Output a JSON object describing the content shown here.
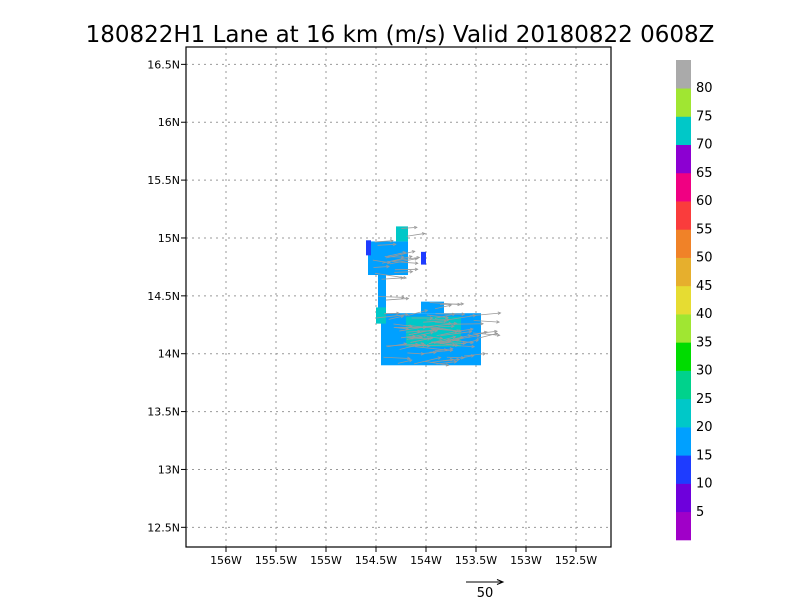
{
  "chart_data": {
    "type": "heatmap",
    "title": "180822H1 Lane at 16 km (m/s) Valid 20180822 0608Z",
    "xlim": [
      -156.4,
      -152.15
    ],
    "ylim": [
      12.33,
      16.65
    ],
    "xticks": [
      {
        "value": -156.0,
        "label": "156W"
      },
      {
        "value": -155.5,
        "label": "155.5W"
      },
      {
        "value": -155.0,
        "label": "155W"
      },
      {
        "value": -154.5,
        "label": "154.5W"
      },
      {
        "value": -154.0,
        "label": "154W"
      },
      {
        "value": -153.5,
        "label": "153.5W"
      },
      {
        "value": -153.0,
        "label": "153W"
      },
      {
        "value": -152.5,
        "label": "152.5W"
      }
    ],
    "yticks": [
      {
        "value": 12.5,
        "label": "12.5N"
      },
      {
        "value": 13.0,
        "label": "13N"
      },
      {
        "value": 13.5,
        "label": "13.5N"
      },
      {
        "value": 14.0,
        "label": "14N"
      },
      {
        "value": 14.5,
        "label": "14.5N"
      },
      {
        "value": 15.0,
        "label": "15N"
      },
      {
        "value": 15.5,
        "label": "15.5N"
      },
      {
        "value": 16.0,
        "label": "16N"
      },
      {
        "value": 16.5,
        "label": "16.5N"
      }
    ],
    "grid": true,
    "colorbar": {
      "levels": [
        5,
        10,
        15,
        20,
        25,
        30,
        35,
        40,
        45,
        50,
        55,
        60,
        65,
        70,
        75,
        80
      ],
      "colors": [
        "#a000c8",
        "#6e00dc",
        "#1e3cff",
        "#00a0ff",
        "#00c8c8",
        "#00d28c",
        "#00dc00",
        "#a0e632",
        "#e6dc32",
        "#e6af2d",
        "#f08228",
        "#fa3c3c",
        "#f00082",
        "#8c00d2",
        "#00c8c8",
        "#a0e632",
        "#aaaaaa"
      ]
    },
    "wind_regions": [
      {
        "speed_band": "15-20",
        "lon": [
          -154.58,
          -154.18
        ],
        "lat": [
          14.68,
          14.97
        ]
      },
      {
        "speed_band": "15-20",
        "lon": [
          -154.48,
          -154.4
        ],
        "lat": [
          14.35,
          14.7
        ]
      },
      {
        "speed_band": "15-20",
        "lon": [
          -154.45,
          -153.45
        ],
        "lat": [
          13.9,
          14.35
        ]
      },
      {
        "speed_band": "15-20",
        "lon": [
          -154.05,
          -153.82
        ],
        "lat": [
          14.35,
          14.45
        ]
      },
      {
        "speed_band": "10-15",
        "lon": [
          -154.6,
          -154.55
        ],
        "lat": [
          14.85,
          14.98
        ]
      },
      {
        "speed_band": "10-15",
        "lon": [
          -154.05,
          -154.0
        ],
        "lat": [
          14.77,
          14.88
        ]
      },
      {
        "speed_band": "20-25",
        "lon": [
          -154.3,
          -154.18
        ],
        "lat": [
          14.97,
          15.1
        ]
      },
      {
        "speed_band": "20-25",
        "lon": [
          -154.5,
          -154.4
        ],
        "lat": [
          14.26,
          14.4
        ]
      },
      {
        "speed_band": "20-25",
        "lon": [
          -154.2,
          -153.65
        ],
        "lat": [
          14.06,
          14.32
        ]
      }
    ],
    "vector_reference": {
      "label": "50"
    }
  }
}
